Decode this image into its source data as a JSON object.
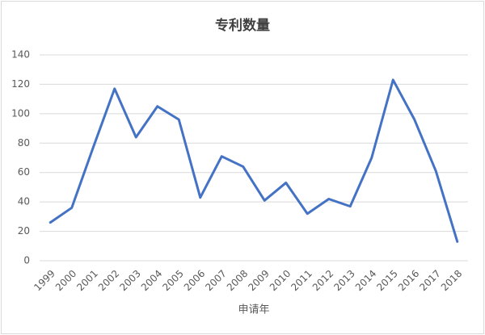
{
  "chart_data": {
    "type": "line",
    "title": "专利数量",
    "x_label": "申请年",
    "categories": [
      "1999",
      "2000",
      "2001",
      "2002",
      "2003",
      "2004",
      "2005",
      "2006",
      "2007",
      "2008",
      "2009",
      "2010",
      "2011",
      "2012",
      "2013",
      "2014",
      "2015",
      "2016",
      "2017",
      "2018"
    ],
    "values": [
      26,
      36,
      77,
      117,
      84,
      105,
      96,
      43,
      71,
      64,
      41,
      53,
      32,
      42,
      37,
      70,
      123,
      96,
      61,
      13
    ],
    "color": "#4472c4",
    "ylim": [
      0,
      140
    ],
    "yticks": [
      0,
      20,
      40,
      60,
      80,
      100,
      120,
      140
    ],
    "grid": true
  }
}
